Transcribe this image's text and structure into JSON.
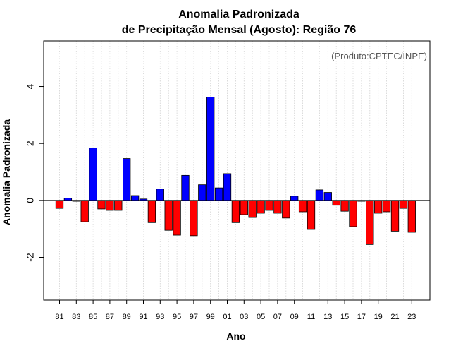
{
  "chart_data": {
    "type": "bar",
    "title": [
      "Anomalia Padronizada",
      "de Precipitação Mensal (Agosto): Região 76"
    ],
    "xlabel": "Ano",
    "ylabel": "Anomalia Padronizada",
    "annotation": "(Produto:CPTEC/INPE)",
    "ylim": [
      -3.5,
      5.6
    ],
    "yticks": [
      -2,
      0,
      2,
      4
    ],
    "ytick_labels": [
      "-2",
      "0",
      "2",
      "4"
    ],
    "grid": "vertical dotted",
    "colors": {
      "positive": "#0000ff",
      "negative": "#ff0000",
      "grid": "#d3d3d3"
    },
    "categories": [
      "1981",
      "1982",
      "1983",
      "1984",
      "1985",
      "1986",
      "1987",
      "1988",
      "1989",
      "1990",
      "1991",
      "1992",
      "1993",
      "1994",
      "1995",
      "1996",
      "1997",
      "1998",
      "1999",
      "2000",
      "2001",
      "2002",
      "2003",
      "2004",
      "2005",
      "2006",
      "2007",
      "2008",
      "2009",
      "2010",
      "2011",
      "2012",
      "2013",
      "2014",
      "2015",
      "2016",
      "2017",
      "2018",
      "2019",
      "2020",
      "2021",
      "2022",
      "2023"
    ],
    "xtick_labels": [
      "81",
      "83",
      "85",
      "87",
      "89",
      "91",
      "93",
      "95",
      "97",
      "99",
      "01",
      "03",
      "05",
      "07",
      "09",
      "11",
      "13",
      "15",
      "17",
      "19",
      "21",
      "23"
    ],
    "values": [
      -0.28,
      0.08,
      -0.03,
      -0.75,
      1.84,
      -0.3,
      -0.35,
      -0.35,
      1.47,
      0.17,
      0.05,
      -0.78,
      0.4,
      -1.05,
      -1.22,
      0.88,
      -1.24,
      0.55,
      3.63,
      0.44,
      0.94,
      -0.78,
      -0.5,
      -0.6,
      -0.45,
      -0.35,
      -0.45,
      -0.62,
      0.15,
      -0.4,
      -1.02,
      0.37,
      0.28,
      -0.17,
      -0.38,
      -0.92,
      -0.03,
      -1.55,
      -0.45,
      -0.4,
      -1.08,
      -0.28,
      -1.12
    ]
  }
}
